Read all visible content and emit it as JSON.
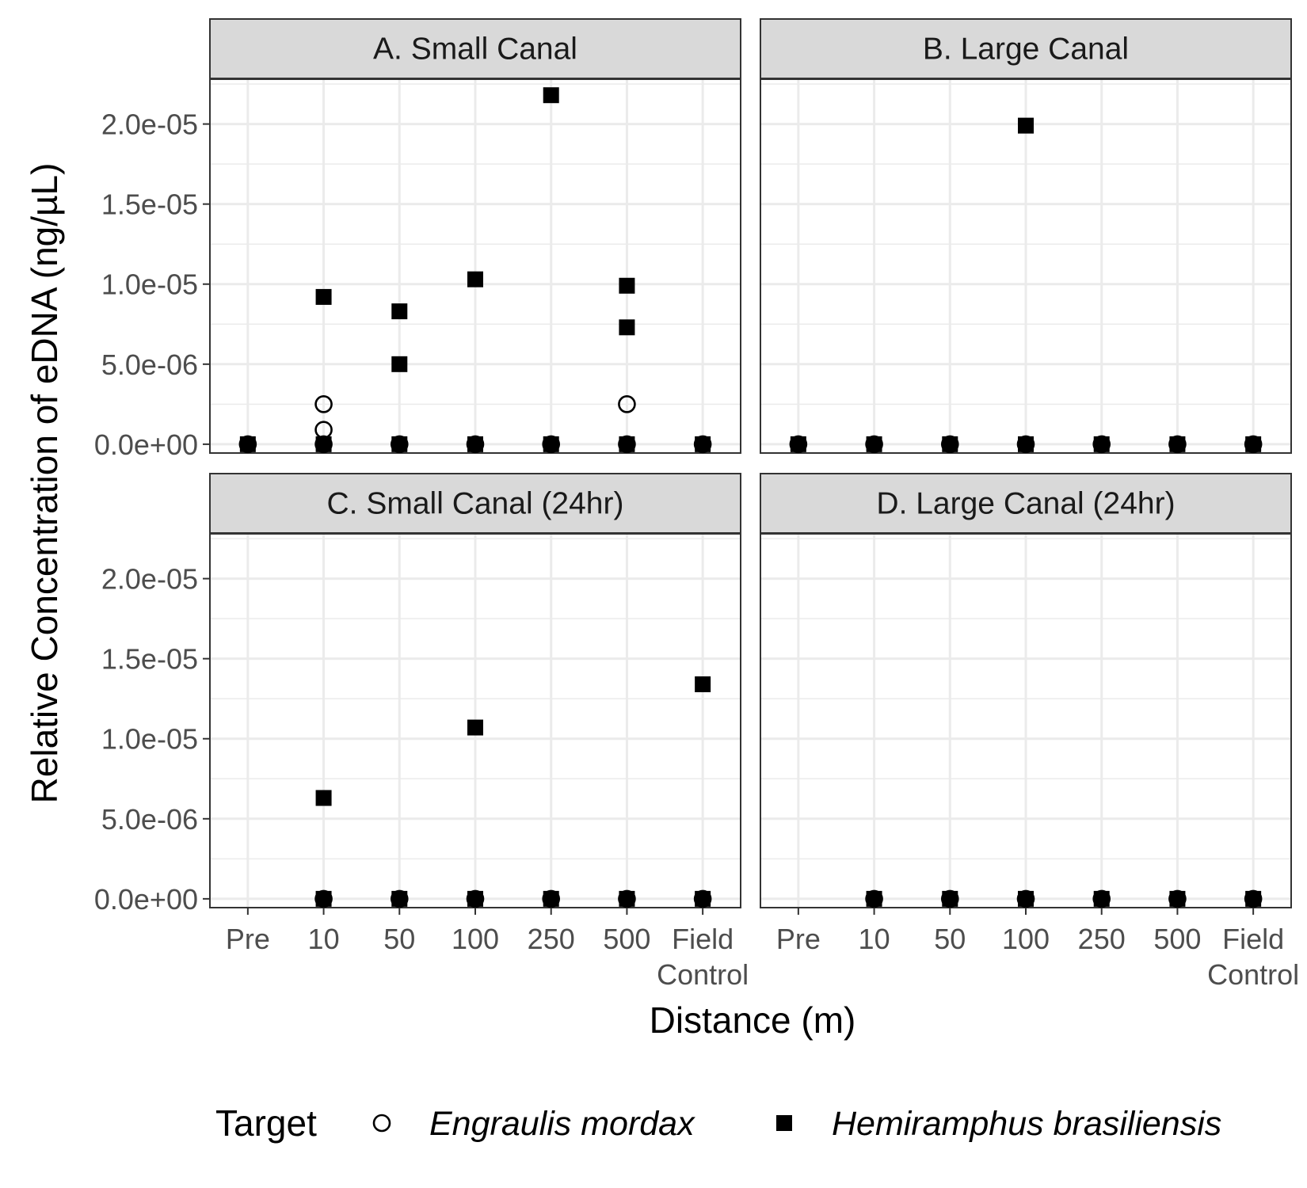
{
  "chart_data": {
    "type": "scatter",
    "xlabel": "Distance (m)",
    "ylabel": "Relative Concentration of eDNA (ng/µL)",
    "categories": [
      "Pre",
      "10",
      "50",
      "100",
      "250",
      "500",
      "Field Control"
    ],
    "category_lines": [
      [
        "Pre"
      ],
      [
        "10"
      ],
      [
        "50"
      ],
      [
        "100"
      ],
      [
        "250"
      ],
      [
        "500"
      ],
      [
        "Field",
        "Control"
      ]
    ],
    "yticks": [
      0,
      5e-06,
      1e-05,
      1.5e-05,
      2e-05
    ],
    "ytick_labels": [
      "0.0e+00",
      "5.0e-06",
      "1.0e-05",
      "1.5e-05",
      "2.0e-05"
    ],
    "ylim": [
      -5.5e-07,
      2.28e-05
    ],
    "grid": true,
    "legend": {
      "position": "bottom",
      "title": "Target",
      "entries": [
        {
          "label": "Engraulis mordax",
          "marker": "circle-open"
        },
        {
          "label": "Hemiramphus brasiliensis",
          "marker": "square-filled"
        }
      ]
    },
    "panels": [
      {
        "title": "A. Small Canal",
        "series": [
          {
            "name": "Engraulis mordax",
            "points": [
              [
                "Pre",
                0
              ],
              [
                "10",
                2.5e-06
              ],
              [
                "10",
                9e-07
              ],
              [
                "10",
                0
              ],
              [
                "50",
                0
              ],
              [
                "100",
                0
              ],
              [
                "250",
                0
              ],
              [
                "500",
                2.5e-06
              ],
              [
                "500",
                0
              ],
              [
                "Field Control",
                0
              ]
            ]
          },
          {
            "name": "Hemiramphus brasiliensis",
            "points": [
              [
                "Pre",
                0
              ],
              [
                "10",
                9.2e-06
              ],
              [
                "10",
                0
              ],
              [
                "50",
                8.3e-06
              ],
              [
                "50",
                5e-06
              ],
              [
                "50",
                0
              ],
              [
                "100",
                1.03e-05
              ],
              [
                "100",
                0
              ],
              [
                "250",
                2.18e-05
              ],
              [
                "250",
                0
              ],
              [
                "500",
                9.9e-06
              ],
              [
                "500",
                7.3e-06
              ],
              [
                "500",
                0
              ],
              [
                "Field Control",
                0
              ]
            ]
          }
        ]
      },
      {
        "title": "B. Large Canal",
        "series": [
          {
            "name": "Engraulis mordax",
            "points": [
              [
                "Pre",
                0
              ],
              [
                "10",
                0
              ],
              [
                "50",
                0
              ],
              [
                "100",
                0
              ],
              [
                "250",
                0
              ],
              [
                "500",
                0
              ],
              [
                "Field Control",
                0
              ]
            ]
          },
          {
            "name": "Hemiramphus brasiliensis",
            "points": [
              [
                "Pre",
                0
              ],
              [
                "10",
                0
              ],
              [
                "50",
                0
              ],
              [
                "100",
                1.99e-05
              ],
              [
                "100",
                0
              ],
              [
                "250",
                0
              ],
              [
                "500",
                0
              ],
              [
                "Field Control",
                0
              ]
            ]
          }
        ]
      },
      {
        "title": "C. Small Canal (24hr)",
        "series": [
          {
            "name": "Engraulis mordax",
            "points": [
              [
                "10",
                0
              ],
              [
                "50",
                0
              ],
              [
                "100",
                0
              ],
              [
                "250",
                0
              ],
              [
                "500",
                0
              ],
              [
                "Field Control",
                0
              ]
            ]
          },
          {
            "name": "Hemiramphus brasiliensis",
            "points": [
              [
                "10",
                6.3e-06
              ],
              [
                "10",
                0
              ],
              [
                "50",
                0
              ],
              [
                "100",
                1.07e-05
              ],
              [
                "100",
                0
              ],
              [
                "250",
                0
              ],
              [
                "500",
                0
              ],
              [
                "Field Control",
                1.34e-05
              ],
              [
                "Field Control",
                0
              ]
            ]
          }
        ]
      },
      {
        "title": "D. Large Canal (24hr)",
        "series": [
          {
            "name": "Engraulis mordax",
            "points": [
              [
                "10",
                0
              ],
              [
                "50",
                0
              ],
              [
                "100",
                0
              ],
              [
                "250",
                0
              ],
              [
                "500",
                0
              ],
              [
                "Field Control",
                0
              ]
            ]
          },
          {
            "name": "Hemiramphus brasiliensis",
            "points": [
              [
                "10",
                0
              ],
              [
                "50",
                0
              ],
              [
                "100",
                0
              ],
              [
                "250",
                0
              ],
              [
                "500",
                0
              ],
              [
                "Field Control",
                0
              ]
            ]
          }
        ]
      }
    ]
  }
}
